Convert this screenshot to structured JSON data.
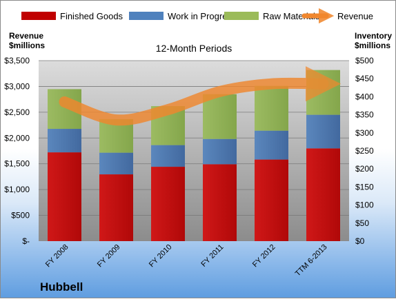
{
  "company": "Hubbell",
  "chart_data": {
    "type": "bar",
    "stacked": true,
    "title": "12-Month Periods",
    "categories": [
      "FY 2008",
      "FY 2009",
      "FY 2010",
      "FY 2011",
      "FY 2012",
      "TTM 6-2013"
    ],
    "series": [
      {
        "name": "Finished Goods",
        "axis": "right",
        "color": "#c00000",
        "values": [
          246,
          185,
          206,
          213,
          226,
          257
        ]
      },
      {
        "name": "Work in Progress",
        "axis": "right",
        "color": "#4f81bd",
        "values": [
          65,
          60,
          60,
          70,
          80,
          93
        ]
      },
      {
        "name": "Raw Materials",
        "axis": "right",
        "color": "#9bbb59",
        "values": [
          110,
          93,
          108,
          124,
          124,
          124
        ]
      },
      {
        "name": "Revenue",
        "axis": "left",
        "type": "line",
        "color": "#f79646",
        "values": [
          2700,
          2350,
          2550,
          2900,
          3050,
          3050
        ]
      }
    ],
    "y_left": {
      "label_lines": [
        "Revenue",
        "$millions"
      ],
      "range": [
        0,
        3500
      ],
      "ticks": [
        "$-",
        "$500",
        "$1,000",
        "$1,500",
        "$2,000",
        "$2,500",
        "$3,000",
        "$3,500"
      ]
    },
    "y_right": {
      "label_lines": [
        "Inventory",
        "$millions"
      ],
      "range": [
        0,
        500
      ],
      "ticks": [
        "$0",
        "$50",
        "$100",
        "$150",
        "$200",
        "$250",
        "$300",
        "$350",
        "$400",
        "$450",
        "$500"
      ]
    },
    "grid": true,
    "legend_position": "top"
  }
}
